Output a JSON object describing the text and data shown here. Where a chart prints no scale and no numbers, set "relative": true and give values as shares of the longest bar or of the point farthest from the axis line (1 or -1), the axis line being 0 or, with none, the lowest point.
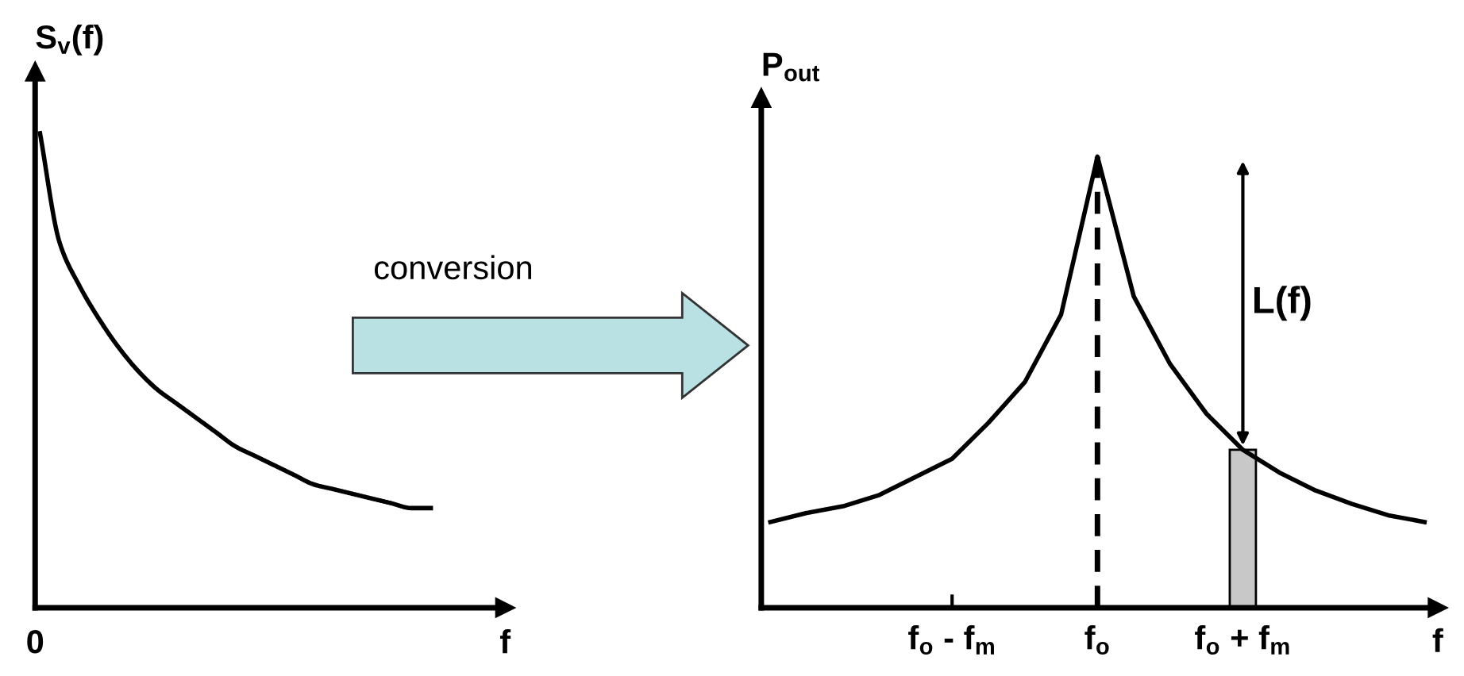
{
  "chart_data": [
    {
      "type": "line",
      "relative": true,
      "ylabel": "S$_{v}$(f)",
      "xlabel": "f",
      "tick_labels": false,
      "annotations": [
        "conversion",
        "0"
      ],
      "categories": [
        null,
        null,
        null,
        null,
        null,
        null,
        null,
        null,
        null,
        null,
        null,
        null,
        null,
        null,
        null,
        null,
        null,
        null,
        null,
        null,
        null
      ],
      "series": [
        {
          "color": "#000000",
          "values": [
            1,
            0.77,
            0.68,
            0.61,
            0.55,
            0.5,
            0.46,
            0.43,
            0.4,
            0.37,
            0.34,
            0.32,
            0.3,
            0.28,
            0.26,
            0.25,
            0.24,
            0.23,
            0.22,
            0.21,
            0.21
          ]
        }
      ]
    },
    {
      "type": "line",
      "relative": true,
      "ylabel": "P$_{out}$",
      "xlabel": "f",
      "tick_labels": "x",
      "categories": [
        null,
        null,
        null,
        null,
        null,
        "f$_{o}$ - f$_{m}$",
        null,
        null,
        null,
        "f$_{o}$",
        null,
        null,
        null,
        "f$_{o}$ + f$_{m}$",
        null,
        null,
        null,
        null,
        null
      ],
      "ref_lines": [
        {
          "axis": "x",
          "value": "f$_{o}$",
          "line_style": "dashed",
          "color": "#000000"
        }
      ],
      "annotations": [
        "L(f)"
      ],
      "series": [
        {
          "color": "#000000",
          "values": [
            0.19,
            0.21,
            0.225,
            0.25,
            0.29,
            0.33,
            0.41,
            0.5,
            0.65,
            1,
            0.69,
            0.54,
            0.43,
            0.35,
            0.3,
            0.26,
            0.23,
            0.205,
            0.19
          ]
        },
        {
          "type": "bar",
          "color": "#c8c8c8",
          "values": [
            null,
            null,
            null,
            null,
            null,
            null,
            null,
            null,
            null,
            null,
            null,
            null,
            null,
            0.35,
            null,
            null,
            null,
            null,
            null
          ]
        }
      ]
    }
  ]
}
